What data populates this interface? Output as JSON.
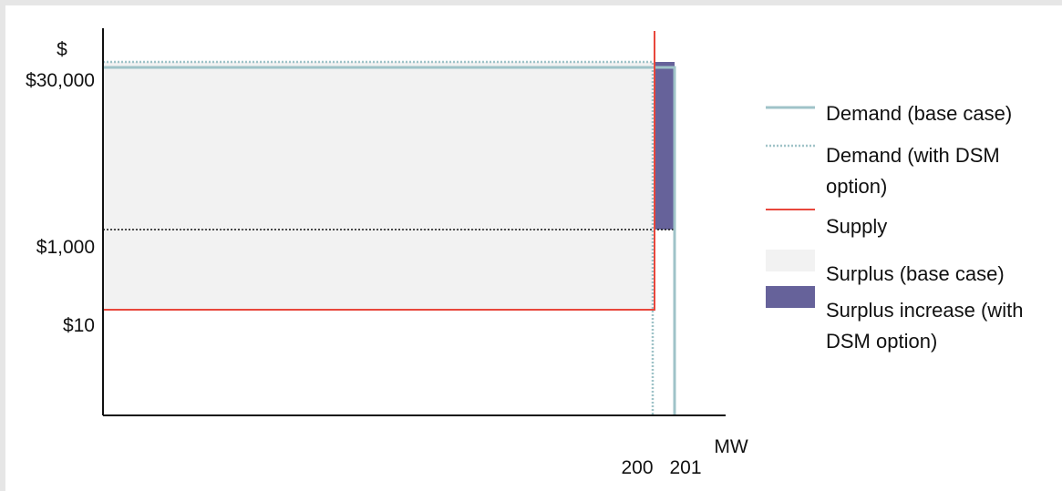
{
  "chart_data": {
    "type": "line",
    "ylabel": "$",
    "xlabel": "MW",
    "y_ticks": [
      {
        "label": "$30,000",
        "value": 30000
      },
      {
        "label": "$1,000",
        "value": 1000
      },
      {
        "label": "$10",
        "value": 10
      }
    ],
    "x_ticks": [
      {
        "label": "200",
        "value": 200
      },
      {
        "label": "201",
        "value": 201
      }
    ],
    "series": [
      {
        "name": "Demand (base case)",
        "points": [
          [
            0,
            30000
          ],
          [
            201,
            30000
          ],
          [
            201,
            0
          ]
        ]
      },
      {
        "name": "Demand (with DSM option)",
        "points": [
          [
            0,
            30000
          ],
          [
            200,
            30000
          ],
          [
            200,
            0
          ]
        ]
      },
      {
        "name": "Supply",
        "points": [
          [
            0,
            10
          ],
          [
            200,
            10
          ],
          [
            200,
            30000
          ]
        ]
      }
    ],
    "areas": [
      {
        "name": "Surplus (base case)",
        "x": [
          0,
          200
        ],
        "y": [
          10,
          30000
        ]
      },
      {
        "name": "Surplus increase (with DSM option)",
        "x": [
          200,
          201
        ],
        "y": [
          1000,
          30000
        ]
      }
    ],
    "reference_lines": [
      {
        "y": 1000,
        "style": "dotted"
      }
    ],
    "colors": {
      "demand": "#9fc3c8",
      "demand_dsm": "#9fc3c8",
      "supply": "#e8473c",
      "surplus": "#f2f2f2",
      "surplus_increase": "#66629a",
      "axis": "#111111"
    },
    "legend": {
      "placement": "right",
      "items": [
        {
          "text": "Demand (base case)",
          "style": "line"
        },
        {
          "text": "Demand (with DSM option)",
          "style": "dotted-line"
        },
        {
          "text": "Supply",
          "style": "line"
        },
        {
          "text": "Surplus (base case)",
          "style": "box"
        },
        {
          "text": "Surplus increase (with DSM option)",
          "style": "box"
        }
      ]
    }
  }
}
